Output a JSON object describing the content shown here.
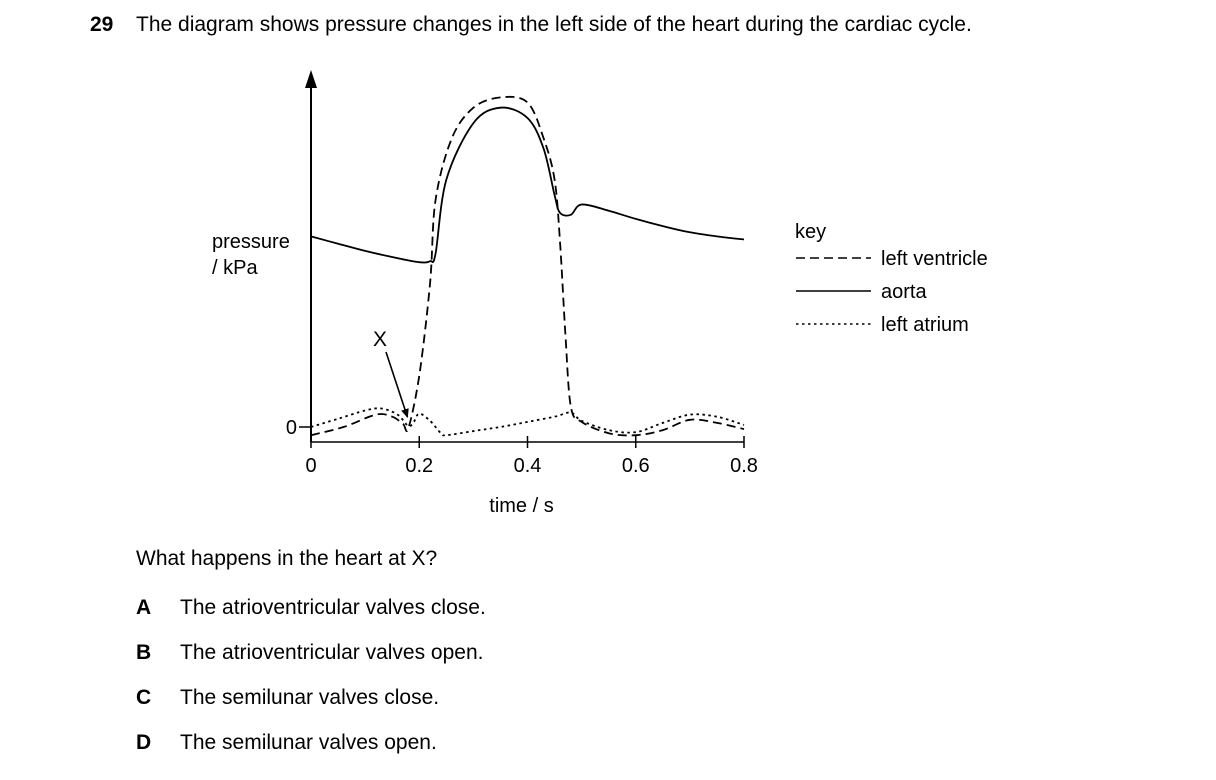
{
  "question": {
    "number": "29",
    "text": "The diagram shows pressure changes in the left side of the heart during the cardiac cycle.",
    "prompt": "What happens in the heart at X?",
    "options": [
      {
        "letter": "A",
        "text": "The atrioventricular valves close."
      },
      {
        "letter": "B",
        "text": "The atrioventricular valves open."
      },
      {
        "letter": "C",
        "text": "The semilunar valves close."
      },
      {
        "letter": "D",
        "text": "The semilunar valves open."
      }
    ]
  },
  "chart_data": {
    "type": "line",
    "xlabel": "time / s",
    "ylabel_line1": "pressure",
    "ylabel_line2": "/ kPa",
    "xticks": [
      "0",
      "0.2",
      "0.4",
      "0.6",
      "0.8"
    ],
    "xlim": [
      0,
      0.8
    ],
    "yticks": [
      "0"
    ],
    "annotation": "X",
    "annotation_x": 0.18,
    "key_title": "key",
    "legend": "right",
    "series": [
      {
        "name": "left ventricle",
        "style": "dashed",
        "x": [
          0,
          0.06,
          0.12,
          0.15,
          0.17,
          0.18,
          0.2,
          0.22,
          0.23,
          0.26,
          0.3,
          0.35,
          0.4,
          0.43,
          0.45,
          0.46,
          0.47,
          0.48,
          0.5,
          0.55,
          0.6,
          0.65,
          0.7,
          0.75,
          0.8
        ],
        "y": [
          -0.8,
          0,
          1.2,
          1.0,
          0.3,
          -0.1,
          5,
          14,
          22,
          28,
          31,
          32,
          31.5,
          28,
          24,
          18,
          9,
          2,
          0.5,
          -0.6,
          -0.8,
          -0.3,
          0.7,
          0.4,
          -0.2
        ]
      },
      {
        "name": "aorta",
        "style": "solid",
        "x": [
          0,
          0.05,
          0.1,
          0.15,
          0.2,
          0.22,
          0.23,
          0.25,
          0.3,
          0.35,
          0.4,
          0.43,
          0.45,
          0.46,
          0.48,
          0.5,
          0.55,
          0.6,
          0.65,
          0.7,
          0.75,
          0.8
        ],
        "y": [
          18.5,
          17.8,
          17.1,
          16.5,
          16.0,
          16.1,
          16.8,
          24,
          29.5,
          31,
          30,
          27,
          22.5,
          20.8,
          20.6,
          21.6,
          21.0,
          20.2,
          19.5,
          18.9,
          18.5,
          18.2
        ]
      },
      {
        "name": "left atrium",
        "style": "dotted",
        "x": [
          0,
          0.05,
          0.1,
          0.13,
          0.16,
          0.18,
          0.19,
          0.2,
          0.22,
          0.24,
          0.25,
          0.3,
          0.35,
          0.4,
          0.45,
          0.48,
          0.5,
          0.55,
          0.6,
          0.65,
          0.7,
          0.75,
          0.8
        ],
        "y": [
          0,
          0.8,
          1.6,
          1.8,
          1.2,
          0.1,
          0.5,
          1.3,
          0.6,
          -0.6,
          -0.8,
          -0.4,
          0,
          0.5,
          1.0,
          1.4,
          0.6,
          -0.3,
          -0.5,
          0.4,
          1.2,
          1.0,
          0.2
        ]
      }
    ]
  }
}
